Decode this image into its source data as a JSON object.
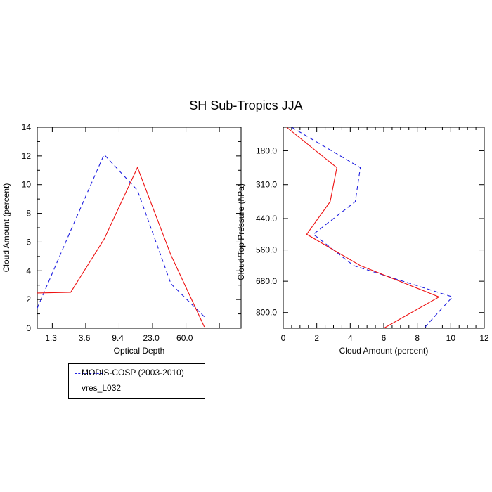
{
  "title": "SH Sub-Tropics JJA",
  "colors": {
    "modis": "#1f1fe0",
    "model": "#ee1111"
  },
  "legend": {
    "items": [
      {
        "label": "MODIS-COSP (2003-2010)",
        "color": "#1f1fe0",
        "dash": "dashed"
      },
      {
        "label": "vres_L032",
        "color": "#ee1111",
        "dash": "solid"
      }
    ]
  },
  "chart_data": [
    {
      "type": "line",
      "xlabel": "Optical Depth",
      "ylabel": "Cloud Amount (percent)",
      "ylim": [
        0,
        14
      ],
      "yticks": [
        0,
        2,
        4,
        6,
        8,
        10,
        12,
        14
      ],
      "xticklabels": [
        "1.3",
        "3.6",
        "9.4",
        "23.0",
        "60.0"
      ],
      "x": [
        1,
        2,
        3,
        4,
        5,
        6,
        7
      ],
      "series": [
        {
          "name": "MODIS-COSP (2003-2010)",
          "values": [
            1.4,
            6.8,
            12.1,
            9.6,
            3.1,
            0.8,
            null
          ]
        },
        {
          "name": "vres_L032",
          "values": [
            2.45,
            2.5,
            6.2,
            11.2,
            5.1,
            0.1,
            null
          ]
        }
      ],
      "grid": false
    },
    {
      "type": "line",
      "xlabel": "Cloud Amount (percent)",
      "ylabel": "Cloud Top Pressure (hPa)",
      "xlim": [
        0,
        12
      ],
      "xticks": [
        0,
        2,
        4,
        6,
        8,
        10,
        12
      ],
      "yticklabels": [
        "180.0",
        "310.0",
        "440.0",
        "560.0",
        "680.0",
        "800.0"
      ],
      "ylevels": [
        180,
        310,
        440,
        560,
        680,
        800
      ],
      "series": [
        {
          "name": "MODIS-COSP (2003-2010)",
          "pressure": [
            90,
            245,
            375,
            500,
            620,
            740,
            860
          ],
          "values": [
            0.5,
            4.6,
            4.3,
            1.8,
            4.2,
            10.1,
            8.4
          ]
        },
        {
          "name": "vres_L032",
          "pressure": [
            90,
            245,
            375,
            500,
            620,
            740,
            860
          ],
          "values": [
            0.2,
            3.2,
            2.8,
            1.4,
            4.6,
            9.3,
            6.0
          ]
        }
      ],
      "grid": false
    }
  ]
}
